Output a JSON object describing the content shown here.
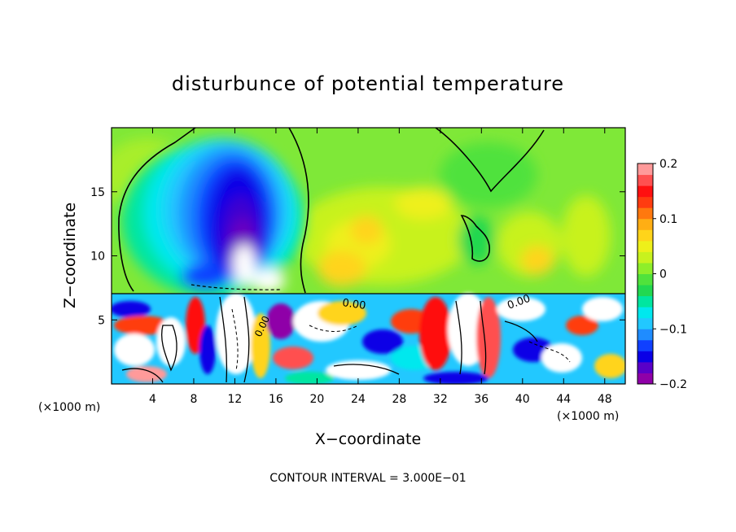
{
  "chart_data": {
    "type": "heatmap",
    "title": "disturbunce of potential temperature",
    "xlabel": "X−coordinate",
    "ylabel": "Z−coordinate",
    "x_unit_left": "(×1000 m)",
    "x_unit_right": "(×1000 m)",
    "x_ticks": [
      "4",
      "8",
      "12",
      "16",
      "20",
      "24",
      "28",
      "32",
      "36",
      "40",
      "44",
      "48"
    ],
    "y_ticks": [
      "5",
      "10",
      "15"
    ],
    "xlim": [
      0,
      50
    ],
    "ylim": [
      0,
      20
    ],
    "colorbar": {
      "range": [
        -0.2,
        0.2
      ],
      "ticks": [
        "0.2",
        "0.1",
        "0",
        "−0.1",
        "−0.2"
      ],
      "tick_values": [
        0.2,
        0.1,
        0,
        -0.1,
        -0.2
      ],
      "colors": [
        "#8f00a8",
        "#5a00c8",
        "#0a00e6",
        "#1040ff",
        "#1f8cff",
        "#22c8ff",
        "#00e8ee",
        "#00e6a0",
        "#22d850",
        "#50e23c",
        "#8eee2a",
        "#c8f21e",
        "#eef01a",
        "#ffd41a",
        "#ffae14",
        "#ff780e",
        "#ff3c10",
        "#ff1010",
        "#ff5050",
        "#ff9a9a"
      ]
    },
    "contour_labels": [
      "0.00",
      "0.00",
      "0.00"
    ],
    "contour_interval_text": "CONTOUR INTERVAL = 3.000E−01",
    "grid": false
  }
}
